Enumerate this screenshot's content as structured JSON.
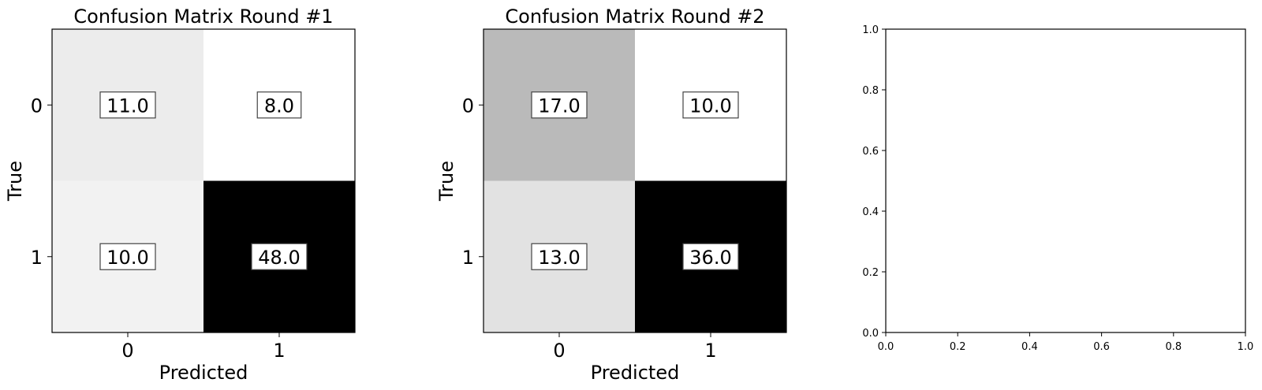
{
  "chart_data": [
    {
      "type": "heatmap",
      "title": "Confusion Matrix Round #1",
      "xlabel": "Predicted",
      "ylabel": "True",
      "x_ticks": [
        "0",
        "1"
      ],
      "y_ticks": [
        "0",
        "1"
      ],
      "colormap": "gray_r",
      "values": [
        [
          11.0,
          8.0
        ],
        [
          10.0,
          48.0
        ]
      ],
      "labels": [
        [
          "11.0",
          "8.0"
        ],
        [
          "10.0",
          "48.0"
        ]
      ]
    },
    {
      "type": "heatmap",
      "title": "Confusion Matrix Round #2",
      "xlabel": "Predicted",
      "ylabel": "True",
      "x_ticks": [
        "0",
        "1"
      ],
      "y_ticks": [
        "0",
        "1"
      ],
      "colormap": "gray_r",
      "values": [
        [
          17.0,
          10.0
        ],
        [
          13.0,
          36.0
        ]
      ],
      "labels": [
        [
          "17.0",
          "10.0"
        ],
        [
          "13.0",
          "36.0"
        ]
      ]
    },
    {
      "type": "scatter",
      "title": "",
      "xlabel": "",
      "ylabel": "",
      "xlim": [
        0.0,
        1.0
      ],
      "ylim": [
        0.0,
        1.0
      ],
      "x_ticks": [
        "0.0",
        "0.2",
        "0.4",
        "0.6",
        "0.8",
        "1.0"
      ],
      "y_ticks": [
        "0.0",
        "0.2",
        "0.4",
        "0.6",
        "0.8",
        "1.0"
      ],
      "series": []
    }
  ]
}
